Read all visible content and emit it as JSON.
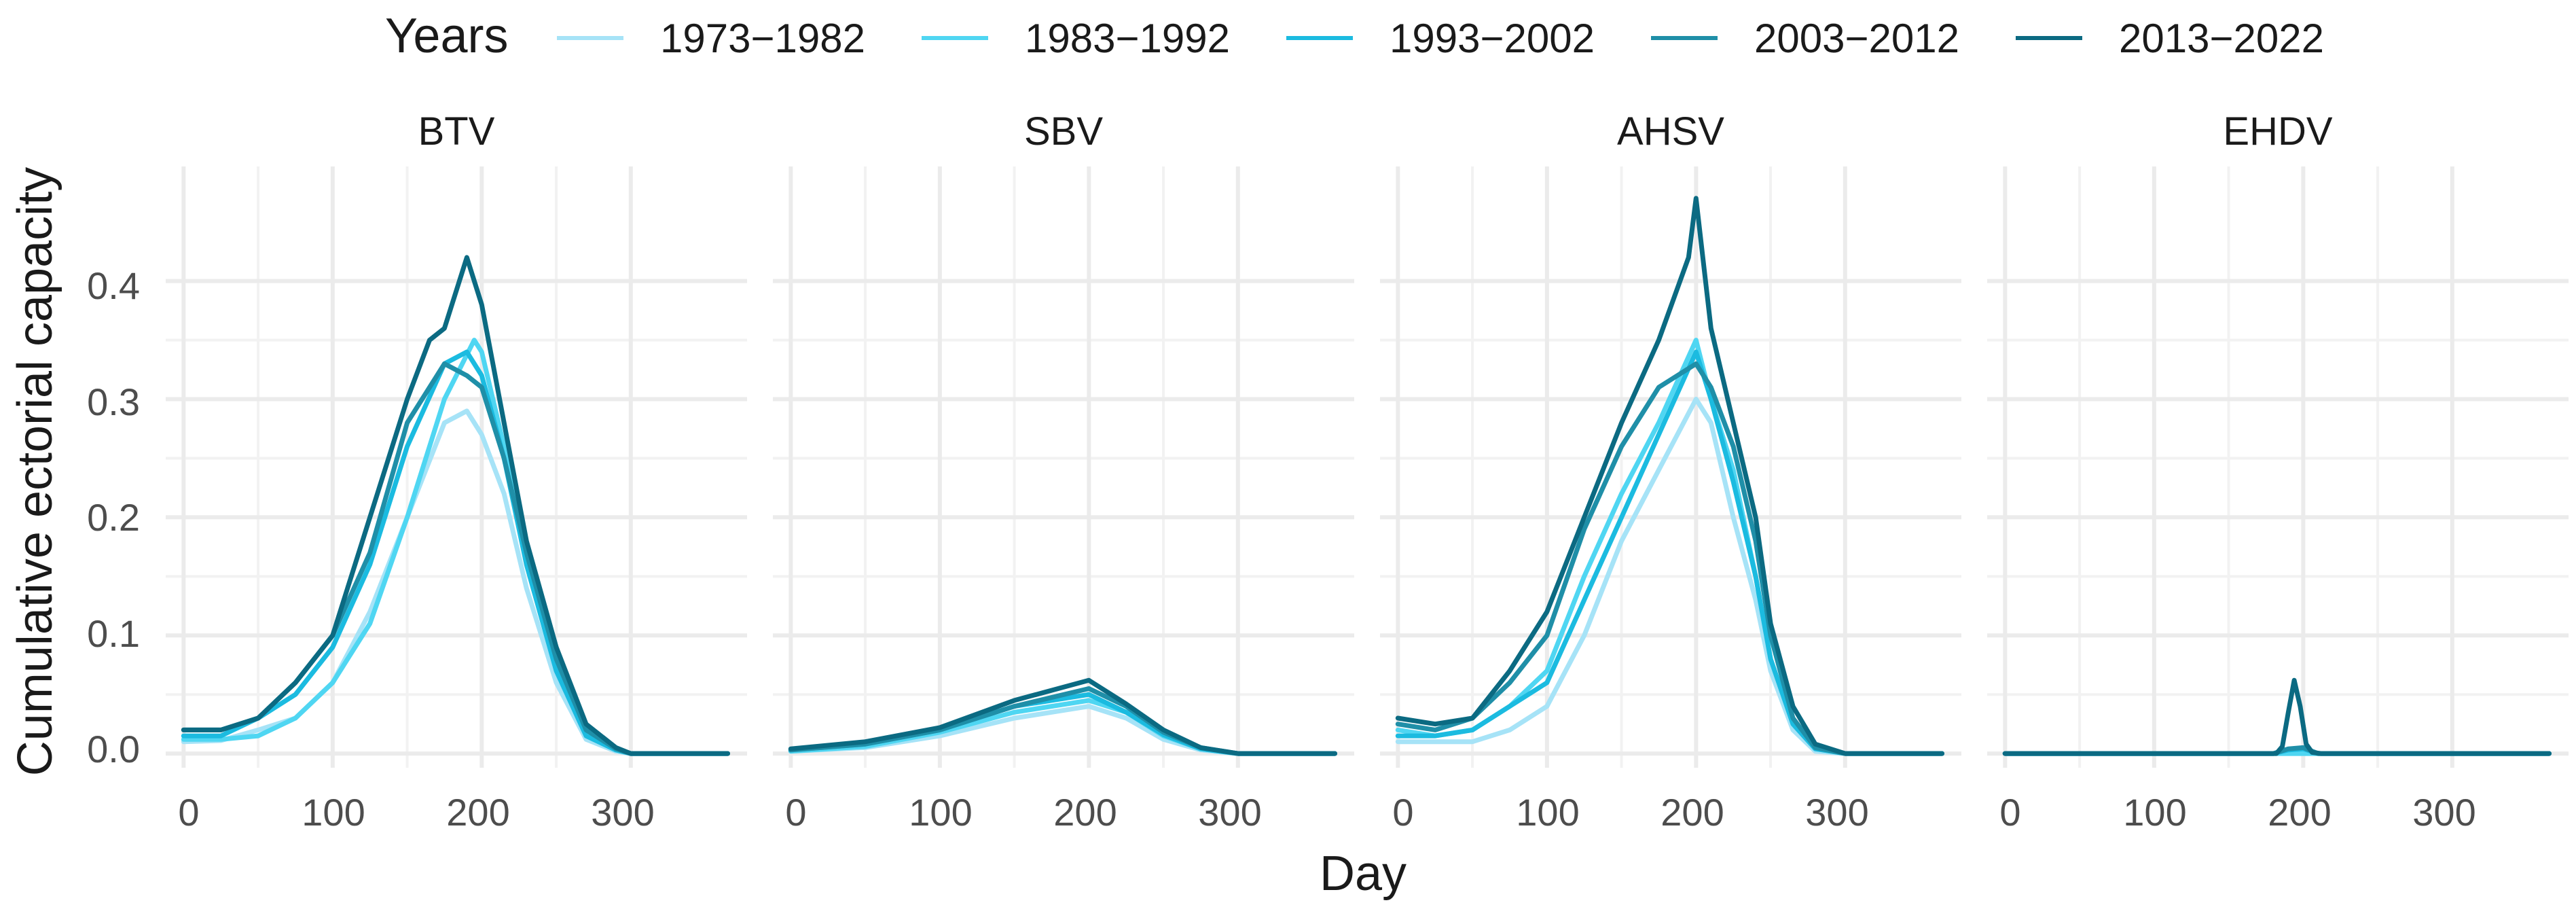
{
  "chart_data": {
    "type": "line",
    "xlabel": "Day",
    "ylabel": "Cumulative ectorial capacity",
    "xlim": [
      -12,
      378
    ],
    "ylim": [
      -0.012,
      0.497
    ],
    "x_ticks": [
      0,
      100,
      200,
      300
    ],
    "y_ticks": [
      0.0,
      0.1,
      0.2,
      0.3,
      0.4
    ],
    "y_tick_labels": [
      "0.0",
      "0.1",
      "0.2",
      "0.3",
      "0.4"
    ],
    "grid": true,
    "legend": {
      "title": "Years",
      "position": "top",
      "items": [
        {
          "label": "1973−1982",
          "color": "#a6e3f7"
        },
        {
          "label": "1983−1992",
          "color": "#4fd6f2"
        },
        {
          "label": "1993−2002",
          "color": "#1bbbe0"
        },
        {
          "label": "2003−2012",
          "color": "#1f8fa8"
        },
        {
          "label": "2013−2022",
          "color": "#0b6a82"
        }
      ]
    },
    "panels": [
      {
        "title": "BTV",
        "series": [
          {
            "name": "1973−1982",
            "x": [
              0,
              25,
              50,
              75,
              100,
              125,
              150,
              175,
              190,
              200,
              215,
              230,
              250,
              270,
              290,
              300,
              330,
              365
            ],
            "y": [
              0.01,
              0.011,
              0.02,
              0.03,
              0.06,
              0.12,
              0.2,
              0.28,
              0.29,
              0.27,
              0.22,
              0.14,
              0.06,
              0.012,
              0.002,
              0.0,
              0.0,
              0.0
            ]
          },
          {
            "name": "1983−1992",
            "x": [
              0,
              25,
              50,
              75,
              100,
              125,
              150,
              175,
              195,
              200,
              215,
              230,
              250,
              270,
              290,
              300,
              330,
              365
            ],
            "y": [
              0.012,
              0.012,
              0.015,
              0.03,
              0.06,
              0.11,
              0.2,
              0.3,
              0.35,
              0.34,
              0.26,
              0.16,
              0.07,
              0.015,
              0.003,
              0.0,
              0.0,
              0.0
            ]
          },
          {
            "name": "1993−2002",
            "x": [
              0,
              25,
              50,
              75,
              100,
              125,
              150,
              175,
              190,
              200,
              215,
              230,
              250,
              270,
              290,
              300,
              330,
              365
            ],
            "y": [
              0.015,
              0.015,
              0.03,
              0.05,
              0.09,
              0.16,
              0.26,
              0.33,
              0.34,
              0.32,
              0.25,
              0.16,
              0.07,
              0.015,
              0.003,
              0.0,
              0.0,
              0.0
            ]
          },
          {
            "name": "2003−2012",
            "x": [
              0,
              25,
              50,
              75,
              100,
              125,
              150,
              175,
              190,
              200,
              215,
              230,
              250,
              270,
              290,
              300,
              330,
              365
            ],
            "y": [
              0.02,
              0.02,
              0.03,
              0.06,
              0.1,
              0.17,
              0.28,
              0.33,
              0.32,
              0.31,
              0.25,
              0.17,
              0.08,
              0.02,
              0.004,
              0.0,
              0.0,
              0.0
            ]
          },
          {
            "name": "2013−2022",
            "x": [
              0,
              25,
              50,
              75,
              100,
              125,
              150,
              165,
              175,
              190,
              200,
              215,
              230,
              250,
              270,
              290,
              300,
              330,
              365
            ],
            "y": [
              0.02,
              0.02,
              0.03,
              0.06,
              0.1,
              0.2,
              0.3,
              0.35,
              0.36,
              0.42,
              0.38,
              0.28,
              0.18,
              0.09,
              0.025,
              0.005,
              0.0,
              0.0,
              0.0
            ]
          }
        ]
      },
      {
        "title": "SBV",
        "series": [
          {
            "name": "1973−1982",
            "x": [
              0,
              50,
              100,
              150,
              200,
              225,
              250,
              275,
              300,
              365
            ],
            "y": [
              0.002,
              0.005,
              0.015,
              0.03,
              0.04,
              0.03,
              0.012,
              0.003,
              0.0,
              0.0
            ]
          },
          {
            "name": "1983−1992",
            "x": [
              0,
              50,
              100,
              150,
              200,
              225,
              250,
              275,
              300,
              365
            ],
            "y": [
              0.002,
              0.006,
              0.018,
              0.035,
              0.045,
              0.035,
              0.015,
              0.004,
              0.0,
              0.0
            ]
          },
          {
            "name": "1993−2002",
            "x": [
              0,
              50,
              100,
              150,
              200,
              225,
              250,
              275,
              300,
              365
            ],
            "y": [
              0.003,
              0.008,
              0.02,
              0.04,
              0.05,
              0.035,
              0.016,
              0.004,
              0.0,
              0.0
            ]
          },
          {
            "name": "2003−2012",
            "x": [
              0,
              50,
              100,
              150,
              200,
              225,
              250,
              275,
              300,
              365
            ],
            "y": [
              0.003,
              0.008,
              0.02,
              0.04,
              0.055,
              0.04,
              0.018,
              0.005,
              0.0,
              0.0
            ]
          },
          {
            "name": "2013−2022",
            "x": [
              0,
              50,
              100,
              150,
              200,
              225,
              250,
              275,
              300,
              365
            ],
            "y": [
              0.004,
              0.01,
              0.022,
              0.045,
              0.062,
              0.042,
              0.02,
              0.005,
              0.0,
              0.0
            ]
          }
        ]
      },
      {
        "title": "AHSV",
        "series": [
          {
            "name": "1973−1982",
            "x": [
              0,
              25,
              50,
              75,
              100,
              125,
              150,
              175,
              200,
              210,
              225,
              240,
              250,
              265,
              280,
              300,
              330,
              365
            ],
            "y": [
              0.01,
              0.01,
              0.01,
              0.02,
              0.04,
              0.1,
              0.18,
              0.24,
              0.3,
              0.28,
              0.2,
              0.13,
              0.07,
              0.02,
              0.002,
              0.0,
              0.0,
              0.0
            ]
          },
          {
            "name": "1983−1992",
            "x": [
              0,
              25,
              50,
              75,
              100,
              125,
              150,
              175,
              200,
              210,
              225,
              240,
              250,
              265,
              280,
              300,
              330,
              365
            ],
            "y": [
              0.02,
              0.015,
              0.02,
              0.04,
              0.07,
              0.15,
              0.22,
              0.28,
              0.35,
              0.3,
              0.24,
              0.15,
              0.08,
              0.025,
              0.004,
              0.0,
              0.0,
              0.0
            ]
          },
          {
            "name": "1993−2002",
            "x": [
              0,
              25,
              50,
              75,
              100,
              125,
              150,
              175,
              200,
              210,
              225,
              240,
              250,
              265,
              280,
              300,
              330,
              365
            ],
            "y": [
              0.015,
              0.015,
              0.02,
              0.04,
              0.06,
              0.13,
              0.2,
              0.27,
              0.34,
              0.3,
              0.23,
              0.15,
              0.08,
              0.025,
              0.004,
              0.0,
              0.0,
              0.0
            ]
          },
          {
            "name": "2003−2012",
            "x": [
              0,
              25,
              50,
              75,
              100,
              125,
              150,
              175,
              200,
              210,
              225,
              240,
              250,
              265,
              280,
              300,
              330,
              365
            ],
            "y": [
              0.025,
              0.02,
              0.03,
              0.06,
              0.1,
              0.19,
              0.26,
              0.31,
              0.33,
              0.31,
              0.26,
              0.18,
              0.1,
              0.03,
              0.005,
              0.0,
              0.0,
              0.0
            ]
          },
          {
            "name": "2013−2022",
            "x": [
              0,
              25,
              50,
              75,
              100,
              125,
              150,
              175,
              195,
              200,
              210,
              225,
              240,
              250,
              265,
              280,
              300,
              330,
              365
            ],
            "y": [
              0.03,
              0.025,
              0.03,
              0.07,
              0.12,
              0.2,
              0.28,
              0.35,
              0.42,
              0.47,
              0.36,
              0.28,
              0.2,
              0.11,
              0.04,
              0.008,
              0.0,
              0.0,
              0.0
            ]
          }
        ]
      },
      {
        "title": "EHDV",
        "series": [
          {
            "name": "1973−1982",
            "x": [
              0,
              365
            ],
            "y": [
              0.0,
              0.0
            ]
          },
          {
            "name": "1983−1992",
            "x": [
              0,
              365
            ],
            "y": [
              0.0,
              0.0
            ]
          },
          {
            "name": "1993−2002",
            "x": [
              0,
              180,
              190,
              200,
              210,
              365
            ],
            "y": [
              0.0,
              0.0,
              0.003,
              0.004,
              0.0,
              0.0
            ]
          },
          {
            "name": "2003−2012",
            "x": [
              0,
              180,
              190,
              200,
              210,
              365
            ],
            "y": [
              0.0,
              0.0,
              0.004,
              0.005,
              0.0,
              0.0
            ]
          },
          {
            "name": "2013−2022",
            "x": [
              0,
              182,
              186,
              190,
              194,
              198,
              202,
              206,
              212,
              365
            ],
            "y": [
              0.0,
              0.0,
              0.006,
              0.035,
              0.062,
              0.04,
              0.008,
              0.001,
              0.0,
              0.0
            ]
          }
        ]
      }
    ]
  }
}
